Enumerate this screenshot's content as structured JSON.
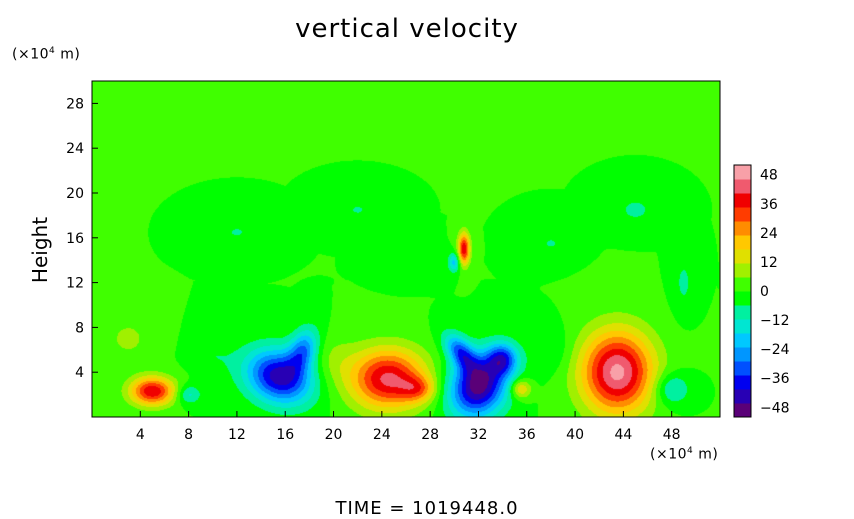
{
  "chart_data": {
    "type": "heatmap",
    "title": "vertical velocity",
    "ylabel": "Height",
    "y_unit_prefix": "(×10",
    "y_unit_exp": "4",
    "y_unit_suffix": " m)",
    "x_unit_prefix": "(×10",
    "x_unit_exp": "4",
    "x_unit_suffix": " m)",
    "footer": "TIME  =  1019448.0",
    "xlim": [
      0,
      52
    ],
    "ylim": [
      0,
      30
    ],
    "x_ticks": [
      4,
      8,
      12,
      16,
      20,
      24,
      28,
      32,
      36,
      40,
      44,
      48
    ],
    "y_ticks": [
      4,
      8,
      12,
      16,
      20,
      24,
      28
    ],
    "colorbar": {
      "range": [
        -52,
        52
      ],
      "ticks": [
        48,
        36,
        24,
        12,
        0,
        -12,
        -24,
        -36,
        -48
      ],
      "tick_labels": [
        "48",
        "36",
        "24",
        "12",
        "0",
        "−12",
        "−24",
        "−36",
        "−48"
      ],
      "colors_bottom_to_top": [
        "#5a0078",
        "#2800b4",
        "#0000f0",
        "#0050ff",
        "#0096ff",
        "#00c8ff",
        "#00e6d2",
        "#00f0a0",
        "#00ff00",
        "#40ff00",
        "#a0f000",
        "#e0e000",
        "#ffc800",
        "#ff8c00",
        "#ff3c00",
        "#f00000",
        "#f05a6e",
        "#f8a0a8"
      ]
    },
    "background_value": 0,
    "features": [
      {
        "x": 5.0,
        "y": 2.3,
        "sx": 1.3,
        "sy": 0.9,
        "value": 40,
        "angle": 0
      },
      {
        "x": 8.0,
        "y": 2.0,
        "sx": 0.7,
        "sy": 0.6,
        "value": -14,
        "angle": 0
      },
      {
        "x": 15.5,
        "y": 3.6,
        "sx": 2.0,
        "sy": 1.6,
        "value": -44,
        "angle": -0.5
      },
      {
        "x": 17.5,
        "y": 6.0,
        "sx": 0.8,
        "sy": 1.4,
        "value": -26,
        "angle": -0.3
      },
      {
        "x": 24.5,
        "y": 3.4,
        "sx": 2.2,
        "sy": 1.9,
        "value": 42,
        "angle": 0
      },
      {
        "x": 27.0,
        "y": 2.5,
        "sx": 1.0,
        "sy": 0.8,
        "value": 18,
        "angle": 0
      },
      {
        "x": 32.0,
        "y": 2.8,
        "sx": 1.6,
        "sy": 2.0,
        "value": -50,
        "angle": -0.4
      },
      {
        "x": 30.5,
        "y": 5.8,
        "sx": 0.7,
        "sy": 1.3,
        "value": -30,
        "angle": 0.6
      },
      {
        "x": 34.0,
        "y": 5.2,
        "sx": 0.9,
        "sy": 1.0,
        "value": -30,
        "angle": 0
      },
      {
        "x": 35.5,
        "y": 2.5,
        "sx": 0.6,
        "sy": 0.6,
        "value": 20,
        "angle": 0
      },
      {
        "x": 43.5,
        "y": 4.0,
        "sx": 2.1,
        "sy": 2.6,
        "value": 48,
        "angle": 0
      },
      {
        "x": 48.0,
        "y": 2.5,
        "sx": 1.0,
        "sy": 1.0,
        "value": -15,
        "angle": 0
      },
      {
        "x": 30.8,
        "y": 15.0,
        "sx": 0.35,
        "sy": 1.0,
        "value": 40,
        "angle": 0
      },
      {
        "x": 30.0,
        "y": 13.8,
        "sx": 0.35,
        "sy": 0.6,
        "value": -20,
        "angle": 0
      },
      {
        "x": 3.0,
        "y": 7.0,
        "sx": 1.5,
        "sy": 1.5,
        "value": 7,
        "angle": 0
      },
      {
        "x": 20.0,
        "y": 5.0,
        "sx": 1.3,
        "sy": 1.6,
        "value": 6,
        "angle": 0
      },
      {
        "x": 38.0,
        "y": 6.0,
        "sx": 1.2,
        "sy": 1.5,
        "value": -6,
        "angle": 0
      },
      {
        "x": 10.0,
        "y": 5.5,
        "sx": 1.2,
        "sy": 1.4,
        "value": -5,
        "angle": 0
      },
      {
        "x": 22.0,
        "y": 18.5,
        "sx": 1.4,
        "sy": 0.9,
        "value": -6,
        "angle": 0
      },
      {
        "x": 45.0,
        "y": 18.5,
        "sx": 1.3,
        "sy": 1.0,
        "value": -7,
        "angle": 0
      },
      {
        "x": 12.0,
        "y": 16.5,
        "sx": 1.5,
        "sy": 1.0,
        "value": -6,
        "angle": 0
      },
      {
        "x": 38.0,
        "y": 15.5,
        "sx": 1.2,
        "sy": 1.0,
        "value": -6,
        "angle": 0
      },
      {
        "x": 49.0,
        "y": 12.0,
        "sx": 0.6,
        "sy": 1.8,
        "value": -7,
        "angle": 0
      },
      {
        "x": 26.0,
        "y": 14.0,
        "sx": 1.2,
        "sy": 1.0,
        "value": -5,
        "angle": 0
      }
    ]
  }
}
